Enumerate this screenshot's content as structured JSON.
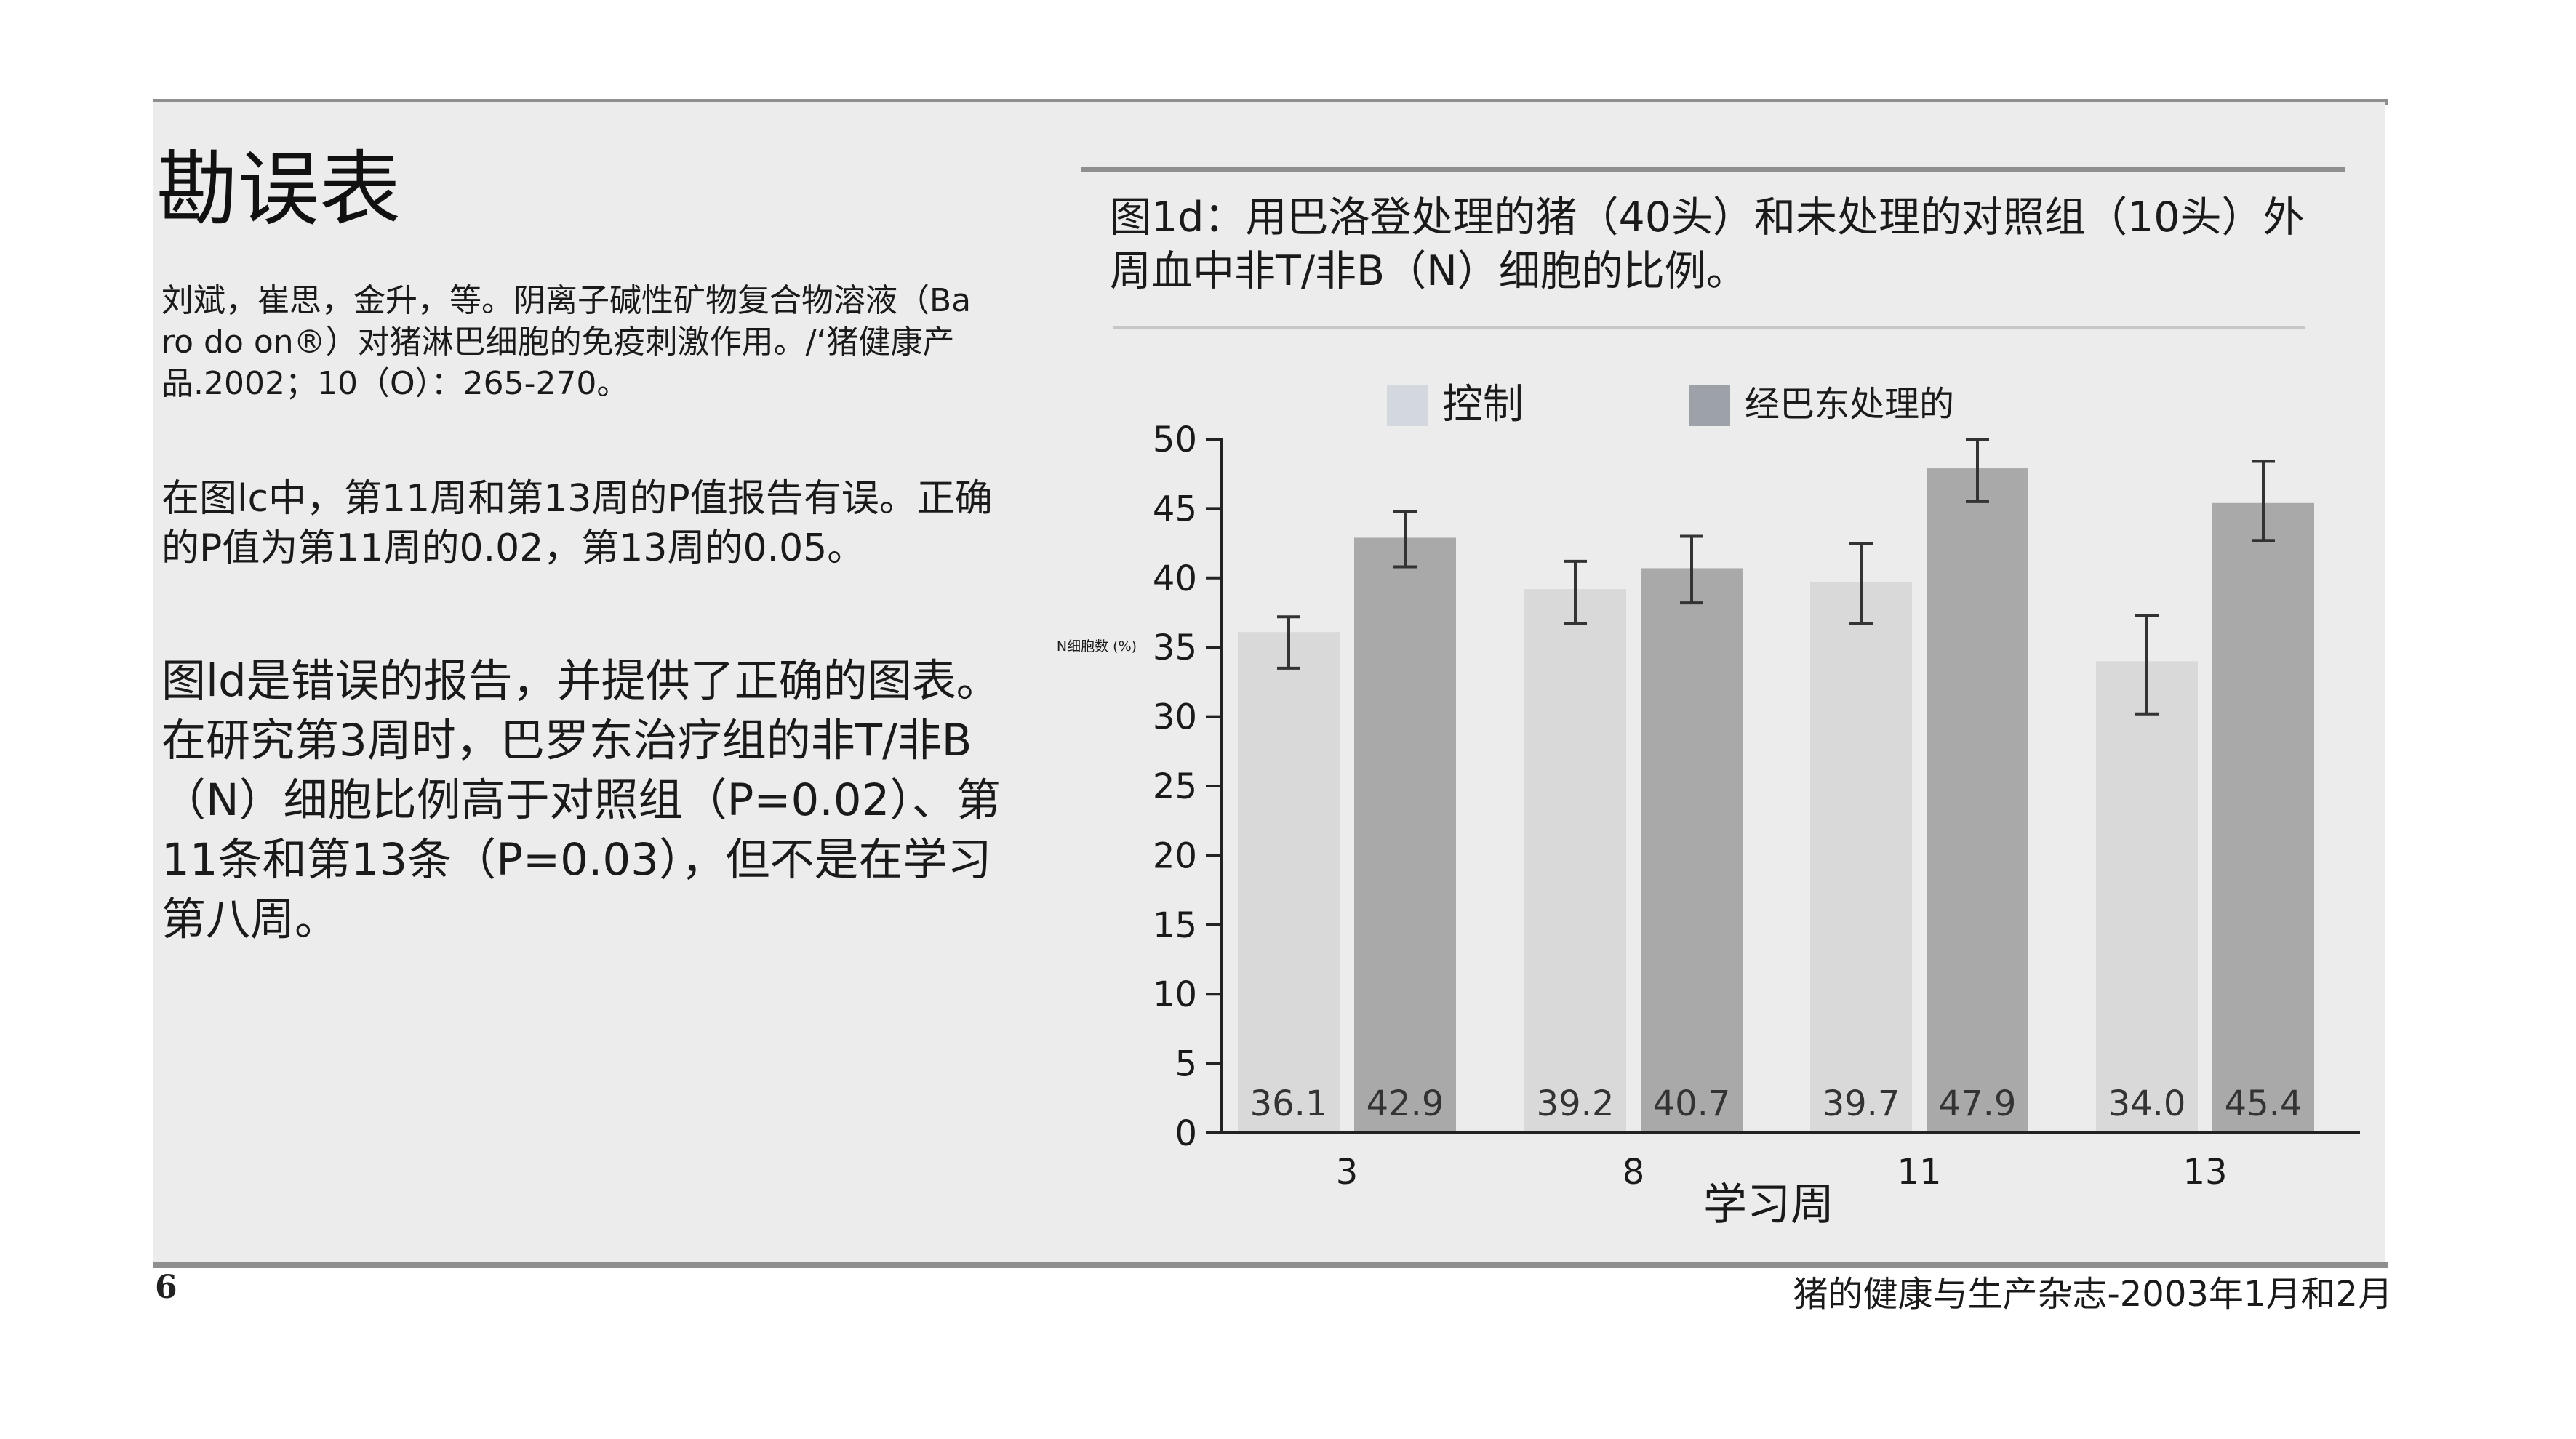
{
  "page": {
    "title": "勘误表",
    "citation": "刘斌，崔思，金升，等。阴离子碱性矿物复合物溶液（Ba ro do on®）对猪淋巴细胞的免疫刺激作用。/‘猪健康产品.2002；10（O）：265-270。",
    "correction_1": "在图lc中，第11周和第13周的P值报告有误。正确的P值为第11周的0.02，第13周的0.05。",
    "correction_2": "图ld是错误的报告，并提供了正确的图表。在研究第3周时，巴罗东治疗组的非T/非B（N）细胞比例高于对照组（P=0.02）、第11条和第13条（P=0.03），但不是在学习第八周。",
    "figure_caption": "图1d：用巴洛登处理的猪（40头）和未处理的对照组（10头）外周血中非T/非B（N）细胞的比例。",
    "page_number": "6",
    "journal_footer": "猪的健康与生产杂志-2003年1月和2月"
  },
  "chart_data": {
    "type": "bar",
    "categories": [
      "3",
      "8",
      "11",
      "13"
    ],
    "series": [
      {
        "name": "控制",
        "values": [
          36.1,
          39.2,
          39.7,
          34.0
        ],
        "error": [
          [
            33.5,
            37.2
          ],
          [
            36.7,
            41.2
          ],
          [
            36.7,
            42.5
          ],
          [
            30.2,
            37.3
          ]
        ],
        "color": "#d9d9d9"
      },
      {
        "name": "经巴东处理的",
        "values": [
          42.9,
          40.7,
          47.9,
          45.4
        ],
        "error": [
          [
            40.8,
            44.8
          ],
          [
            38.2,
            43.0
          ],
          [
            45.5,
            50.0
          ],
          [
            42.7,
            48.4
          ]
        ],
        "color": "#a9a9a9"
      }
    ],
    "value_labels": [
      [
        "36.1",
        "39.2",
        "39.7",
        "34.0"
      ],
      [
        "42.9",
        "40.7",
        "47.9",
        "45.4"
      ]
    ],
    "xlabel": "学习周",
    "ylabel": "N细胞数 (%)",
    "ylim": [
      0,
      50
    ],
    "yticks": [
      0,
      5,
      10,
      15,
      20,
      25,
      30,
      35,
      40,
      45,
      50
    ],
    "grid": false,
    "legend_position": "top",
    "legend_swatch_colors": [
      "#d3d7de",
      "#9da2a8"
    ]
  }
}
